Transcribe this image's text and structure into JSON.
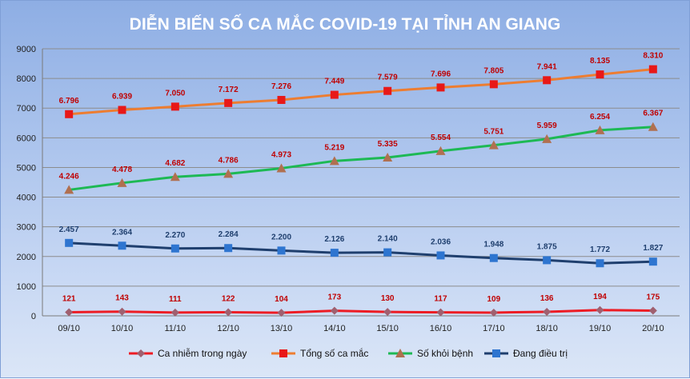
{
  "chart_data": {
    "type": "line",
    "title": "DIỄN BIẾN SỐ CA MẮC COVID-19 TẠI TỈNH AN GIANG",
    "categories": [
      "09/10",
      "10/10",
      "11/10",
      "12/10",
      "13/10",
      "14/10",
      "15/10",
      "16/10",
      "17/10",
      "18/10",
      "19/10",
      "20/10"
    ],
    "ylim": [
      0,
      9000
    ],
    "yticks": [
      0,
      1000,
      2000,
      3000,
      4000,
      5000,
      6000,
      7000,
      8000,
      9000
    ],
    "grid": true,
    "legend_position": "bottom",
    "series": [
      {
        "name": "Ca nhiễm trong ngày",
        "color": "#ed1c24",
        "marker": "diamond",
        "marker_color": "#a06070",
        "label_color": "#c00000",
        "values": [
          121,
          143,
          111,
          122,
          104,
          173,
          130,
          117,
          109,
          136,
          194,
          175
        ],
        "labels": [
          "121",
          "143",
          "111",
          "122",
          "104",
          "173",
          "130",
          "117",
          "109",
          "136",
          "194",
          "175"
        ]
      },
      {
        "name": "Tổng số ca mắc",
        "color": "#ed7d31",
        "marker": "square",
        "marker_color": "#e81818",
        "label_color": "#c00000",
        "values": [
          6796,
          6939,
          7050,
          7172,
          7276,
          7449,
          7579,
          7696,
          7805,
          7941,
          8135,
          8310
        ],
        "labels": [
          "6.796",
          "6.939",
          "7.050",
          "7.172",
          "7.276",
          "7.449",
          "7.579",
          "7.696",
          "7.805",
          "7.941",
          "8.135",
          "8.310"
        ]
      },
      {
        "name": "Số khỏi bệnh",
        "color": "#1db954",
        "marker": "triangle",
        "marker_color": "#b07050",
        "label_color": "#c00000",
        "values": [
          4246,
          4478,
          4682,
          4786,
          4973,
          5219,
          5335,
          5554,
          5751,
          5959,
          6254,
          6367
        ],
        "labels": [
          "4.246",
          "4.478",
          "4.682",
          "4.786",
          "4.973",
          "5.219",
          "5.335",
          "5.554",
          "5.751",
          "5.959",
          "6.254",
          "6.367"
        ]
      },
      {
        "name": "Đang điều trị",
        "color": "#1f3f6e",
        "marker": "square",
        "marker_color": "#2e75d0",
        "label_color": "#1f3f6e",
        "values": [
          2457,
          2364,
          2270,
          2284,
          2200,
          2126,
          2140,
          2036,
          1948,
          1875,
          1772,
          1827
        ],
        "labels": [
          "2.457",
          "2.364",
          "2.270",
          "2.284",
          "2.200",
          "2.126",
          "2.140",
          "2.036",
          "1.948",
          "1.875",
          "1.772",
          "1.827"
        ]
      }
    ]
  }
}
